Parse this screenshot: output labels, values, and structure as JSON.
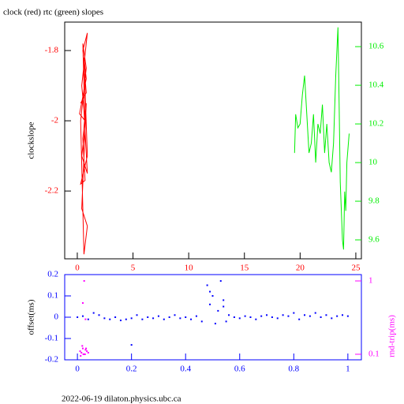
{
  "chart_data": [
    {
      "type": "line",
      "title": "clock (red) rtc (green) slopes",
      "ylabel": "clockslope",
      "xlim": [
        -1.13,
        25.5
      ],
      "xticks": [
        0,
        5,
        10,
        15,
        20,
        25
      ],
      "ylim": [
        -2.393,
        -1.719
      ],
      "yticks": [
        -2.2,
        -2,
        -1.8
      ],
      "y2lim": [
        9.502,
        10.727
      ],
      "y2ticks": [
        9.6,
        9.8,
        10,
        10.2,
        10.4,
        10.6
      ],
      "series": [
        {
          "color": "#ff0000",
          "x": [
            0.3,
            0.8,
            0.5,
            0.9,
            0.4,
            0.7,
            0.2,
            0.8,
            0.6,
            0.9,
            0.3,
            0.7,
            0.5,
            0.8,
            0.4,
            0.9,
            0.6,
            0.3,
            0.8,
            0.5,
            0.7,
            0.4,
            0.9,
            0.6,
            0.8
          ],
          "values": [
            -1.95,
            -1.92,
            -1.8,
            -1.75,
            -1.9,
            -2.0,
            -1.98,
            -1.88,
            -1.82,
            -2.1,
            -2.18,
            -2.17,
            -2.05,
            -1.95,
            -2.25,
            -2.3,
            -2.38,
            -2.0,
            -1.85,
            -1.78,
            -2.02,
            -2.1,
            -2.15,
            -1.97,
            -2.0
          ]
        },
        {
          "color": "#00ee00",
          "axis": "y2",
          "x": [
            19.5,
            19.6,
            19.8,
            20.0,
            20.2,
            20.4,
            20.6,
            20.8,
            21.0,
            21.2,
            21.4,
            21.6,
            21.8,
            22.0,
            22.2,
            22.4,
            22.6,
            22.8,
            23.0,
            23.2,
            23.4,
            23.5,
            23.6,
            23.8,
            23.9,
            24.0,
            24.1,
            24.2,
            24.4
          ],
          "values": [
            10.05,
            10.25,
            10.18,
            10.2,
            10.35,
            10.45,
            10.25,
            10.05,
            10.1,
            10.25,
            10.0,
            10.2,
            10.15,
            10.3,
            10.05,
            10.2,
            10.0,
            9.95,
            10.1,
            10.45,
            10.7,
            10.3,
            9.9,
            9.6,
            9.55,
            9.85,
            9.75,
            10.0,
            10.15
          ]
        }
      ]
    },
    {
      "type": "scatter",
      "ylabel": "offset(ms)",
      "y2label": "rnd-trip(ms)",
      "footer": "2022-06-19  dilaton.physics.ubc.ca",
      "xlim": [
        -0.047,
        1.05
      ],
      "xticks": [
        0,
        0.2,
        0.4,
        0.6,
        0.8,
        1
      ],
      "ylim": [
        -0.2,
        0.2
      ],
      "yticks": [
        -0.2,
        -0.1,
        0,
        0.1,
        0.2
      ],
      "y2lim": [
        0.084,
        1.22
      ],
      "y2ticks": [
        0.1,
        1
      ],
      "y2log": true,
      "series": [
        {
          "color": "#0000ff",
          "x": [
            0.0,
            0.02,
            0.04,
            0.06,
            0.08,
            0.1,
            0.12,
            0.14,
            0.16,
            0.18,
            0.2,
            0.22,
            0.24,
            0.26,
            0.28,
            0.3,
            0.32,
            0.34,
            0.36,
            0.38,
            0.4,
            0.42,
            0.44,
            0.46,
            0.48,
            0.49,
            0.5,
            0.51,
            0.52,
            0.53,
            0.54,
            0.55,
            0.56,
            0.58,
            0.6,
            0.62,
            0.64,
            0.66,
            0.68,
            0.7,
            0.72,
            0.74,
            0.76,
            0.78,
            0.8,
            0.82,
            0.84,
            0.86,
            0.88,
            0.9,
            0.92,
            0.94,
            0.96,
            0.98,
            1.0,
            0.2,
            0.54,
            0.49
          ],
          "values": [
            0,
            0.005,
            -0.01,
            0.02,
            0.01,
            -0.005,
            -0.01,
            0,
            -0.015,
            -0.01,
            -0.005,
            0.01,
            -0.01,
            0,
            -0.005,
            0.005,
            -0.01,
            0,
            0.01,
            -0.005,
            0,
            -0.01,
            0.005,
            -0.02,
            0.15,
            0.06,
            0.1,
            -0.03,
            0.03,
            0.17,
            0.05,
            -0.02,
            0.01,
            0,
            -0.005,
            0.005,
            0,
            -0.01,
            0.005,
            0.01,
            0,
            -0.005,
            0.01,
            0.005,
            0.02,
            -0.01,
            0.01,
            0.005,
            0.02,
            0,
            0.01,
            -0.005,
            0.005,
            0.01,
            0.005,
            -0.13,
            0.08,
            0.12
          ]
        },
        {
          "color": "#ff00ff",
          "axis": "y2",
          "x": [
            0.01,
            0.015,
            0.02,
            0.025,
            0.03,
            0.035,
            0.04,
            0.012,
            0.022,
            0.032,
            0.018,
            0.028,
            0.025,
            0.02,
            0.03
          ],
          "values": [
            0.11,
            0.105,
            0.12,
            0.1,
            0.115,
            0.11,
            0.105,
            0.095,
            0.1,
            0.12,
            0.13,
            0.1,
            1.0,
            0.5,
            0.3
          ]
        }
      ]
    }
  ]
}
